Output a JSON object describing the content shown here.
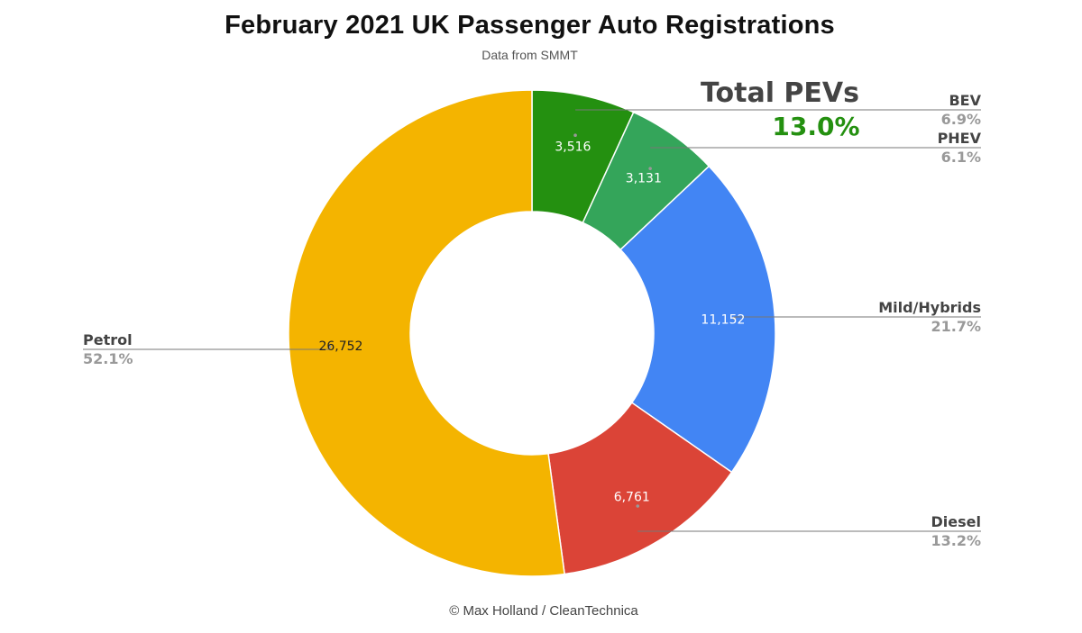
{
  "chart_data": {
    "type": "pie",
    "style": "donut",
    "title": "February 2021 UK Passenger Auto Registrations",
    "subtitle": "Data from SMMT",
    "footer": "© Max Holland / CleanTechnica",
    "callout": {
      "title": "Total PEVs",
      "value": "13.0%",
      "color": "#249010"
    },
    "slices": [
      {
        "name": "BEV",
        "value": 3516,
        "value_label": "3,516",
        "percent_label": "6.9%",
        "color": "#249010",
        "label_color": "#ffffff"
      },
      {
        "name": "PHEV",
        "value": 3131,
        "value_label": "3,131",
        "percent_label": "6.1%",
        "color": "#34a55a",
        "label_color": "#ffffff"
      },
      {
        "name": "Mild/Hybrids",
        "value": 11152,
        "value_label": "11,152",
        "percent_label": "21.7%",
        "color": "#4285f4",
        "label_color": "#ffffff"
      },
      {
        "name": "Diesel",
        "value": 6761,
        "value_label": "6,761",
        "percent_label": "13.2%",
        "color": "#db4437",
        "label_color": "#ffffff"
      },
      {
        "name": "Petrol",
        "value": 26752,
        "value_label": "26,752",
        "percent_label": "52.1%",
        "color": "#f4b400",
        "label_color": "#222222"
      }
    ],
    "legend": "leader-line labels around the donut",
    "name_label_color": "#444444",
    "percent_label_color": "#999999"
  }
}
